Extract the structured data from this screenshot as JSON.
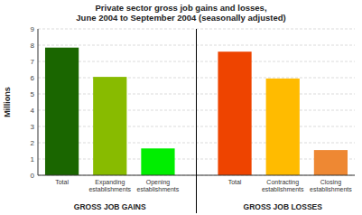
{
  "chart_data": {
    "type": "bar",
    "title": "Private sector gross job gains and losses,\nJune 2004 to September 2004 (seasonally adjusted)",
    "ylabel": "Millions",
    "categories": [
      "Total",
      "Expanding\nestablishments",
      "Opening\nestablishments",
      "Total",
      "Contracting\nestablishments",
      "Closing\nestablishments"
    ],
    "values": [
      7.85,
      6.05,
      1.65,
      7.6,
      5.95,
      1.55
    ],
    "colors": [
      "#1a6600",
      "#88bb00",
      "#00ee00",
      "#ee4400",
      "#ffbb00",
      "#ee8833"
    ],
    "annotations": [
      "GROSS JOB GAINS",
      "GROSS JOB LOSSES"
    ],
    "ylim": [
      0,
      9
    ],
    "yticks": [
      0,
      1,
      2,
      3,
      4,
      5,
      6,
      7,
      8,
      9
    ],
    "grid": true
  }
}
